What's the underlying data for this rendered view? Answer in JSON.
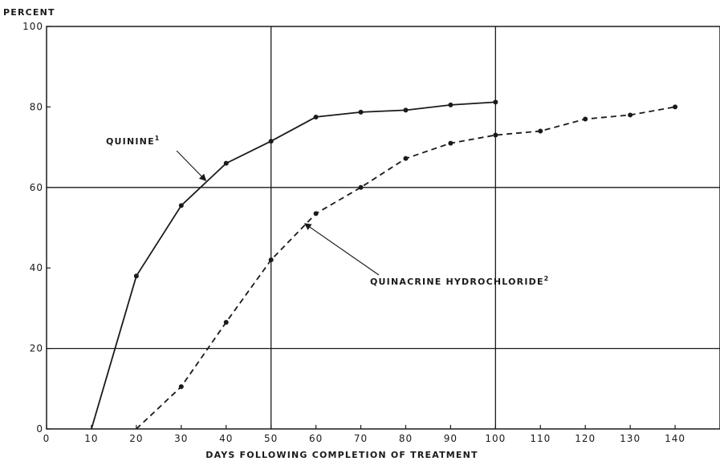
{
  "chart_data": {
    "type": "line",
    "ylabel": "PERCENT",
    "xlabel": "DAYS FOLLOWING COMPLETION OF TREATMENT",
    "xlim": [
      0,
      150
    ],
    "ylim": [
      0,
      100
    ],
    "x_ticks": [
      0,
      10,
      20,
      30,
      40,
      50,
      60,
      70,
      80,
      90,
      100,
      110,
      120,
      130,
      140
    ],
    "y_ticks": [
      0,
      20,
      40,
      60,
      80,
      100
    ],
    "grid": {
      "vertical_at": [
        50,
        100
      ],
      "horizontal_at": [
        20,
        60
      ]
    },
    "series": [
      {
        "name": "QUININE",
        "superscript": "1",
        "style": "solid",
        "color": "#1a1a1a",
        "points": [
          [
            10,
            0
          ],
          [
            20,
            38
          ],
          [
            30,
            55.5
          ],
          [
            40,
            66
          ],
          [
            50,
            71.5
          ],
          [
            60,
            77.5
          ],
          [
            70,
            78.7
          ],
          [
            80,
            79.2
          ],
          [
            90,
            80.5
          ],
          [
            100,
            81.2
          ]
        ],
        "annotation_x": 35.5
      },
      {
        "name": "QUINACRINE HYDROCHLORIDE",
        "superscript": "2",
        "style": "dashed",
        "color": "#1a1a1a",
        "points": [
          [
            20,
            0
          ],
          [
            30,
            10.5
          ],
          [
            40,
            26.5
          ],
          [
            50,
            42
          ],
          [
            60,
            53.5
          ],
          [
            70,
            60
          ],
          [
            80,
            67.2
          ],
          [
            90,
            71
          ],
          [
            100,
            73
          ],
          [
            110,
            74
          ],
          [
            120,
            77
          ],
          [
            130,
            78
          ],
          [
            140,
            80
          ]
        ],
        "annotation_x": 57.5
      }
    ]
  }
}
